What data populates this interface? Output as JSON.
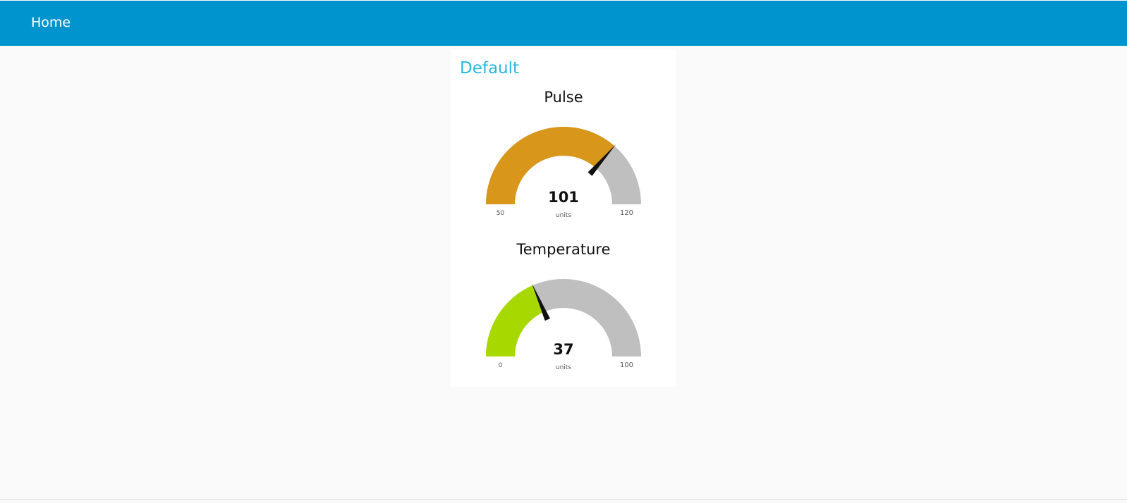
{
  "header": {
    "title": "Home"
  },
  "group": {
    "title": "Default"
  },
  "gauges": [
    {
      "title": "Pulse",
      "value": 101,
      "value_text": "101",
      "units": "units",
      "min": 50,
      "max": 120,
      "min_label": "50",
      "max_label": "120",
      "fill_color": "#d8961a"
    },
    {
      "title": "Temperature",
      "value": 37,
      "value_text": "37",
      "units": "units",
      "min": 0,
      "max": 100,
      "min_label": "0",
      "max_label": "100",
      "fill_color": "#a7d900"
    }
  ],
  "colors": {
    "header_bg": "#0094ce",
    "group_title": "#29b6e6",
    "track": "#bfbfbf",
    "needle": "#111111"
  }
}
